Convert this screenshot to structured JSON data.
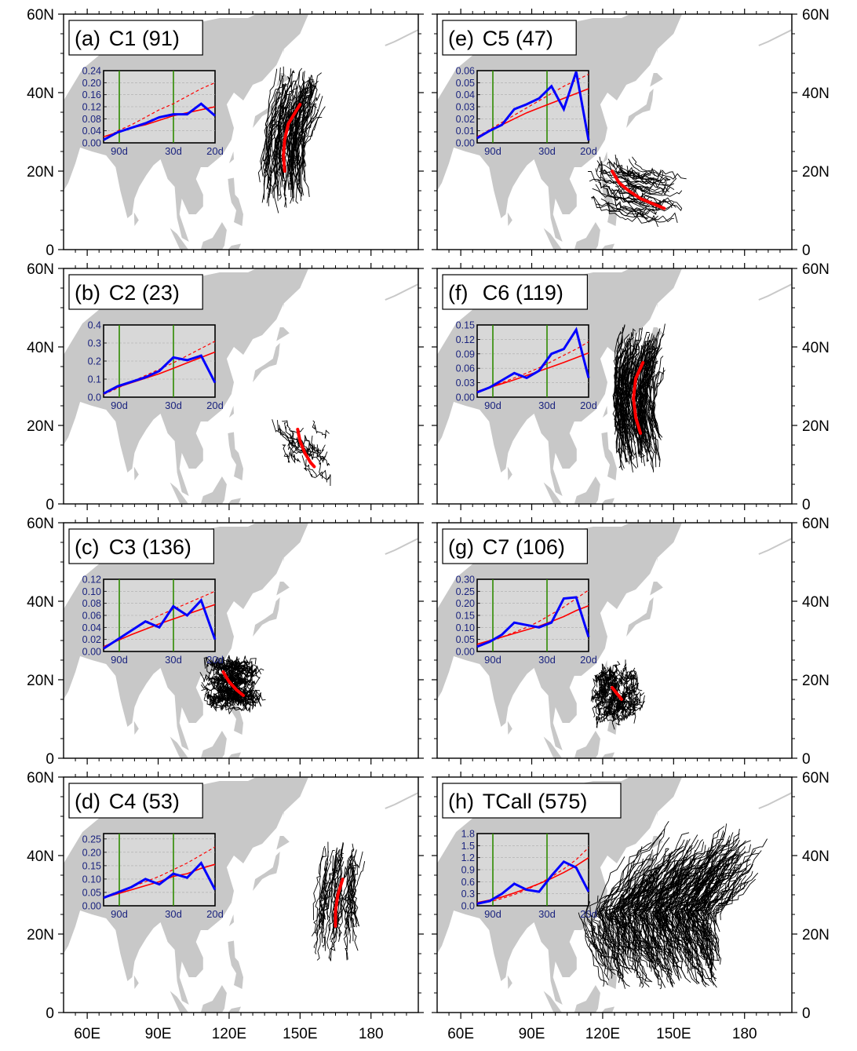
{
  "figure": {
    "lat_ticks": [
      "0",
      "20N",
      "40N",
      "60N"
    ],
    "lon_ticks": [
      "60E",
      "90E",
      "120E",
      "150E",
      "180"
    ],
    "inset_x_ticks": [
      "90d",
      "30d",
      "20d"
    ],
    "colors": {
      "land": "#c8c8c8",
      "track": "#000000",
      "mean_track": "#ff0000",
      "observed": "#0000ff",
      "trend": "#ff0000",
      "vline": "#2e8b00",
      "inset_bg": "#d8d8d8",
      "tick_text": "#1a237e"
    }
  },
  "chart_data": [
    {
      "type": "line",
      "panel": "(a)",
      "title": "C1 (91)",
      "cluster": "C1",
      "count": 91,
      "map_extent": {
        "lon": [
          50,
          200
        ],
        "lat": [
          0,
          60
        ]
      },
      "mean_track": [
        [
          143.5,
          20
        ],
        [
          143,
          24
        ],
        [
          143.5,
          28
        ],
        [
          145,
          32
        ],
        [
          148,
          35
        ],
        [
          150,
          37
        ]
      ],
      "inset": {
        "y_ticks": [
          0.0,
          0.04,
          0.08,
          0.12,
          0.16,
          0.2,
          0.24
        ],
        "ylim": [
          0,
          0.24
        ],
        "observed": [
          0.01,
          0.035,
          0.05,
          0.065,
          0.085,
          0.095,
          0.095,
          0.13,
          0.09
        ],
        "trend_solid": [
          0.02,
          0.035,
          0.05,
          0.06,
          0.075,
          0.09,
          0.1,
          0.11,
          0.12
        ],
        "trend_dashed": [
          0.01,
          0.04,
          0.06,
          0.085,
          0.11,
          0.13,
          0.155,
          0.18,
          0.2
        ]
      }
    },
    {
      "type": "line",
      "panel": "(b)",
      "title": "C2 (23)",
      "cluster": "C2",
      "count": 23,
      "map_extent": {
        "lon": [
          50,
          200
        ],
        "lat": [
          0,
          60
        ]
      },
      "mean_track": [
        [
          149,
          19
        ],
        [
          150,
          16
        ],
        [
          152,
          13
        ],
        [
          154.5,
          10.5
        ],
        [
          156,
          9.5
        ]
      ],
      "inset": {
        "y_ticks": [
          0.0,
          0.1,
          0.2,
          0.3,
          0.4
        ],
        "ylim": [
          0,
          0.4
        ],
        "observed": [
          0.02,
          0.06,
          0.085,
          0.11,
          0.145,
          0.22,
          0.205,
          0.23,
          0.08
        ],
        "trend_solid": [
          0.02,
          0.055,
          0.08,
          0.105,
          0.13,
          0.16,
          0.19,
          0.22,
          0.25
        ],
        "trend_dashed": [
          0.015,
          0.05,
          0.085,
          0.12,
          0.155,
          0.19,
          0.23,
          0.27,
          0.31
        ]
      }
    },
    {
      "type": "line",
      "panel": "(c)",
      "title": "C3 (136)",
      "cluster": "C3",
      "count": 136,
      "map_extent": {
        "lon": [
          50,
          200
        ],
        "lat": [
          0,
          60
        ]
      },
      "mean_track": [
        [
          117.5,
          22
        ],
        [
          120,
          19.5
        ],
        [
          123,
          17.5
        ],
        [
          126,
          16
        ]
      ],
      "inset": {
        "y_ticks": [
          0.0,
          0.02,
          0.04,
          0.06,
          0.08,
          0.1,
          0.12
        ],
        "ylim": [
          0,
          0.12
        ],
        "observed": [
          0.005,
          0.02,
          0.035,
          0.05,
          0.04,
          0.075,
          0.06,
          0.085,
          0.02
        ],
        "trend_solid": [
          0.008,
          0.018,
          0.028,
          0.037,
          0.046,
          0.054,
          0.062,
          0.07,
          0.078
        ],
        "trend_dashed": [
          0.005,
          0.02,
          0.035,
          0.048,
          0.06,
          0.07,
          0.08,
          0.09,
          0.1
        ]
      }
    },
    {
      "type": "line",
      "panel": "(d)",
      "title": "C4 (53)",
      "cluster": "C4",
      "count": 53,
      "map_extent": {
        "lon": [
          50,
          200
        ],
        "lat": [
          0,
          60
        ]
      },
      "mean_track": [
        [
          165,
          22
        ],
        [
          165,
          26
        ],
        [
          166,
          30
        ],
        [
          168,
          34
        ]
      ],
      "inset": {
        "y_ticks": [
          0.0,
          0.05,
          0.1,
          0.15,
          0.2,
          0.25
        ],
        "ylim": [
          0,
          0.27
        ],
        "observed": [
          0.03,
          0.05,
          0.07,
          0.1,
          0.08,
          0.12,
          0.105,
          0.16,
          0.06
        ],
        "trend_solid": [
          0.03,
          0.045,
          0.06,
          0.075,
          0.09,
          0.11,
          0.12,
          0.14,
          0.155
        ],
        "trend_dashed": [
          0.03,
          0.05,
          0.07,
          0.09,
          0.11,
          0.135,
          0.16,
          0.19,
          0.22
        ]
      }
    },
    {
      "type": "line",
      "panel": "(e)",
      "title": "C5 (47)",
      "cluster": "C5",
      "count": 47,
      "map_extent": {
        "lon": [
          50,
          200
        ],
        "lat": [
          0,
          60
        ]
      },
      "mean_track": [
        [
          124,
          20
        ],
        [
          127,
          17
        ],
        [
          131,
          15
        ],
        [
          136,
          13
        ],
        [
          142,
          11.5
        ],
        [
          146,
          10.5
        ]
      ],
      "inset": {
        "y_ticks": [
          0.0,
          0.01,
          0.02,
          0.03,
          0.04,
          0.05,
          0.06
        ],
        "ylim": [
          0,
          0.06
        ],
        "observed": [
          0.004,
          0.01,
          0.015,
          0.028,
          0.032,
          0.037,
          0.047,
          0.028,
          0.059,
          0.002
        ],
        "trend_solid": [
          0.005,
          0.01,
          0.015,
          0.02,
          0.025,
          0.029,
          0.033,
          0.037,
          0.041,
          0.045
        ],
        "trend_dashed": [
          0.005,
          0.011,
          0.017,
          0.023,
          0.029,
          0.035,
          0.041,
          0.047,
          0.052,
          0.057
        ]
      }
    },
    {
      "type": "line",
      "panel": "(f)",
      "title": "C6 (119)",
      "cluster": "C6",
      "count": 119,
      "map_extent": {
        "lon": [
          50,
          200
        ],
        "lat": [
          0,
          60
        ]
      },
      "mean_track": [
        [
          136,
          18
        ],
        [
          134,
          22
        ],
        [
          133,
          27
        ],
        [
          134,
          32
        ],
        [
          137,
          36
        ]
      ],
      "inset": {
        "y_ticks": [
          0.0,
          0.03,
          0.06,
          0.09,
          0.12,
          0.15
        ],
        "ylim": [
          0,
          0.15
        ],
        "observed": [
          0.01,
          0.02,
          0.035,
          0.05,
          0.04,
          0.055,
          0.09,
          0.1,
          0.14,
          0.04
        ],
        "trend_solid": [
          0.012,
          0.02,
          0.028,
          0.036,
          0.045,
          0.054,
          0.063,
          0.072,
          0.082,
          0.092
        ],
        "trend_dashed": [
          0.01,
          0.02,
          0.03,
          0.04,
          0.05,
          0.061,
          0.074,
          0.087,
          0.1,
          0.115
        ]
      }
    },
    {
      "type": "line",
      "panel": "(g)",
      "title": "C7 (106)",
      "cluster": "C7",
      "count": 106,
      "map_extent": {
        "lon": [
          50,
          200
        ],
        "lat": [
          0,
          60
        ]
      },
      "mean_track": [
        [
          124,
          18
        ],
        [
          126,
          16.5
        ],
        [
          128,
          15
        ]
      ],
      "inset": {
        "y_ticks": [
          0.0,
          0.05,
          0.1,
          0.15,
          0.2,
          0.25,
          0.3
        ],
        "ylim": [
          0,
          0.3
        ],
        "observed": [
          0.02,
          0.04,
          0.07,
          0.12,
          0.11,
          0.1,
          0.12,
          0.22,
          0.225,
          0.06
        ],
        "trend_solid": [
          0.03,
          0.045,
          0.06,
          0.075,
          0.09,
          0.105,
          0.125,
          0.145,
          0.17,
          0.19
        ],
        "trend_dashed": [
          0.02,
          0.04,
          0.06,
          0.08,
          0.1,
          0.125,
          0.155,
          0.185,
          0.22,
          0.255
        ]
      }
    },
    {
      "type": "line",
      "panel": "(h)",
      "title": "TCall (575)",
      "cluster": "TCall",
      "count": 575,
      "map_extent": {
        "lon": [
          50,
          200
        ],
        "lat": [
          0,
          60
        ]
      },
      "mean_track": [],
      "inset": {
        "y_ticks": [
          0.0,
          0.3,
          0.6,
          0.9,
          1.2,
          1.5,
          1.8
        ],
        "ylim": [
          0,
          1.8
        ],
        "observed": [
          0.05,
          0.12,
          0.3,
          0.55,
          0.4,
          0.35,
          0.75,
          1.1,
          0.95,
          0.35
        ],
        "trend_solid": [
          0.08,
          0.14,
          0.22,
          0.32,
          0.43,
          0.55,
          0.68,
          0.83,
          1.0,
          1.2
        ],
        "trend_dashed": [
          0.05,
          0.1,
          0.18,
          0.28,
          0.4,
          0.55,
          0.72,
          0.92,
          1.15,
          1.45
        ]
      }
    }
  ]
}
